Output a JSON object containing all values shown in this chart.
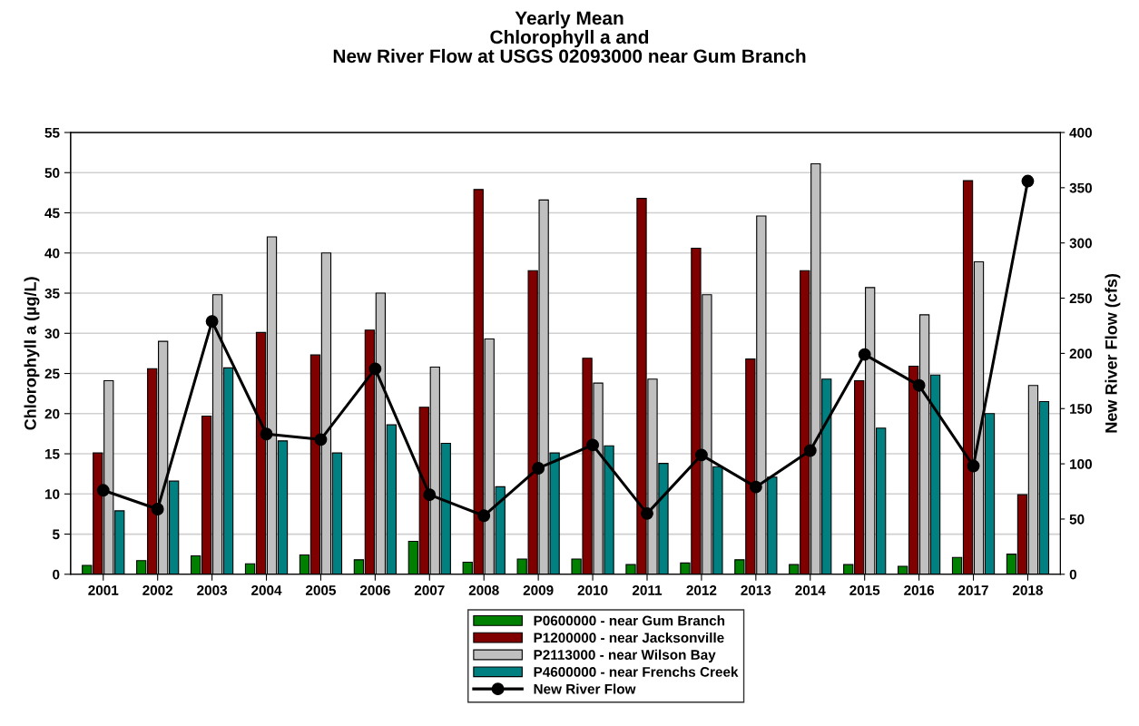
{
  "chart_data": {
    "type": "bar",
    "title": "Yearly Mean\nChlorophyll a and\nNew River Flow at USGS 02093000 near Gum Branch",
    "ylabel": "Chlorophyll a (µg/L)",
    "y2label": "New River Flow (cfs)",
    "categories": [
      "2001",
      "2002",
      "2003",
      "2004",
      "2005",
      "2006",
      "2007",
      "2008",
      "2009",
      "2010",
      "2011",
      "2012",
      "2013",
      "2014",
      "2015",
      "2016",
      "2017",
      "2018"
    ],
    "series": [
      {
        "name": "P0600000 - near Gum Branch",
        "color": "#008000",
        "values": [
          1.1,
          1.7,
          2.3,
          1.3,
          2.4,
          1.8,
          4.1,
          1.5,
          1.9,
          1.9,
          1.2,
          1.4,
          1.8,
          1.2,
          1.2,
          1.0,
          2.1,
          2.5
        ]
      },
      {
        "name": "P1200000 - near Jacksonville",
        "color": "#800000",
        "values": [
          15.1,
          25.6,
          19.7,
          30.1,
          27.3,
          30.4,
          20.8,
          47.9,
          37.8,
          26.9,
          46.8,
          40.6,
          26.8,
          37.8,
          24.1,
          25.9,
          49.0,
          9.9
        ]
      },
      {
        "name": "P2113000 - near Wilson Bay",
        "color": "#c0c0c0",
        "values": [
          24.1,
          29.0,
          34.8,
          42.0,
          40.0,
          35.0,
          25.8,
          29.3,
          46.6,
          23.8,
          24.3,
          34.8,
          44.6,
          51.1,
          35.7,
          32.3,
          38.9,
          23.5
        ]
      },
      {
        "name": "P4600000 - near Frenchs Creek",
        "color": "#008080",
        "values": [
          7.9,
          11.6,
          25.7,
          16.6,
          15.1,
          18.6,
          16.3,
          10.9,
          15.1,
          16.0,
          13.8,
          13.4,
          12.1,
          24.3,
          18.2,
          24.8,
          20.0,
          21.5
        ]
      },
      {
        "name": "New River Flow",
        "type": "line",
        "axis": "y2",
        "color": "#000000",
        "marker": "circle",
        "line_style": "solid",
        "values": [
          76,
          59,
          229,
          127,
          122,
          186,
          72,
          53,
          96,
          117,
          55,
          108,
          79,
          112,
          199,
          171,
          98,
          356
        ]
      }
    ],
    "ylim": [
      0,
      55
    ],
    "yticks": [
      0,
      5,
      10,
      15,
      20,
      25,
      30,
      35,
      40,
      45,
      50,
      55
    ],
    "y2lim": [
      0,
      400
    ],
    "y2ticks": [
      0,
      50,
      100,
      150,
      200,
      250,
      300,
      350,
      400
    ],
    "grid": "y",
    "legend": "bottom"
  }
}
